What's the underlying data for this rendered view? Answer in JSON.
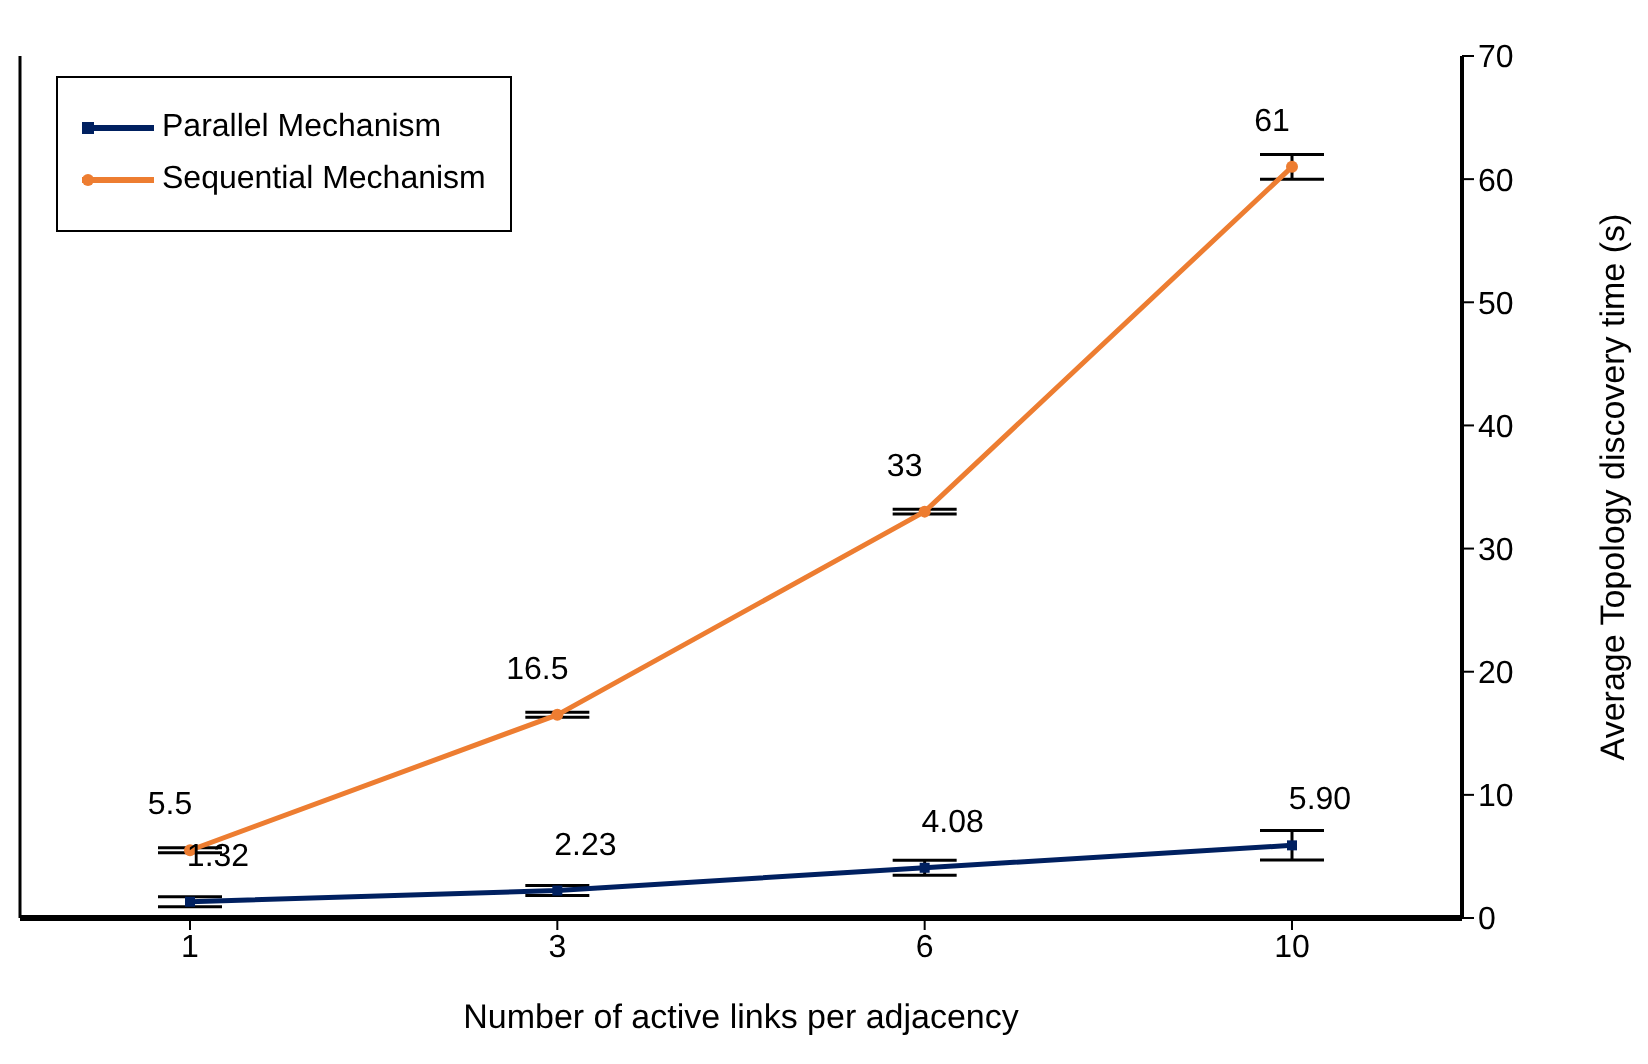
{
  "chart_data": {
    "type": "line",
    "xlabel": "Number  of active links per adjacency",
    "ylabel": "Average Topology discovery time (s)",
    "categories": [
      "1",
      "3",
      "6",
      "10"
    ],
    "series": [
      {
        "name": "Parallel Mechanism",
        "color": "#002060",
        "marker": "square",
        "values": [
          1.32,
          2.23,
          4.08,
          5.9
        ],
        "errors": [
          0.4,
          0.4,
          0.6,
          1.2
        ],
        "value_labels": [
          "1.32",
          "2.23",
          "4.08",
          "5.90"
        ]
      },
      {
        "name": "Sequential Mechanism",
        "color": "#ed7d31",
        "marker": "circle",
        "values": [
          5.5,
          16.5,
          33,
          61
        ],
        "errors": [
          0.2,
          0.2,
          0.2,
          1
        ],
        "value_labels": [
          "5.5",
          "16.5",
          "33",
          "61"
        ]
      }
    ],
    "ylim": [
      0,
      70
    ],
    "yticks": [
      0,
      10,
      20,
      30,
      40,
      50,
      60,
      70
    ],
    "legend": "top left",
    "line_style": "solid"
  }
}
